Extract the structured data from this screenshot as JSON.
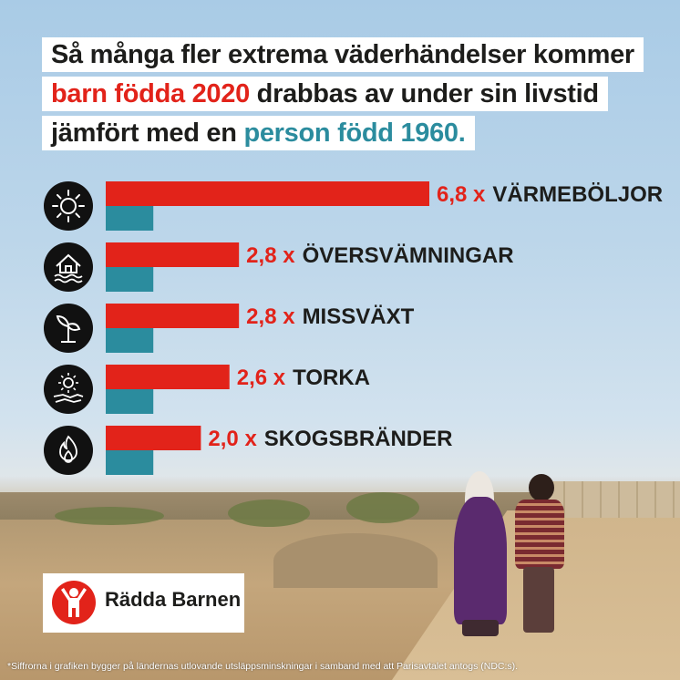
{
  "title": {
    "line1": "Så många fler extrema väderhändelser kommer",
    "line2_highlight": "barn födda 2020",
    "line2_rest": " drabbas av under sin livstid",
    "line3_start": "jämfört med en ",
    "line3_highlight": "person född 1960."
  },
  "colors": {
    "born_2020": "#e2231a",
    "born_1960": "#2b8c9e",
    "label_text": "#1d1d1b",
    "icon_circle": "#111111"
  },
  "chart_data": {
    "type": "bar",
    "orientation": "horizontal",
    "categories": [
      "VÄRMEBÖLJOR",
      "ÖVERSVÄMNINGAR",
      "MISSVÄXT",
      "TORKA",
      "SKOGSBRÄNDER"
    ],
    "series": [
      {
        "name": "barn födda 2020",
        "values": [
          6.8,
          2.8,
          2.8,
          2.6,
          2.0
        ]
      },
      {
        "name": "person född 1960.",
        "values": [
          1,
          1,
          1,
          1,
          1
        ]
      }
    ],
    "labels": [
      "6,8 x",
      "2,8 x",
      "2,8 x",
      "2,6 x",
      "2,0 x"
    ],
    "icons": [
      "sun-icon",
      "flooded-house-icon",
      "wilted-plant-icon",
      "drought-icon",
      "flame-icon"
    ],
    "xlim": [
      0,
      6.8
    ],
    "grid": false,
    "legend": "none"
  },
  "logo": {
    "text": "Rädda Barnen"
  },
  "footnote": "*Siffrorna i grafiken bygger på ländernas utlovande utsläppsminskningar i samband med att Parisavtalet antogs (NDC:s)."
}
